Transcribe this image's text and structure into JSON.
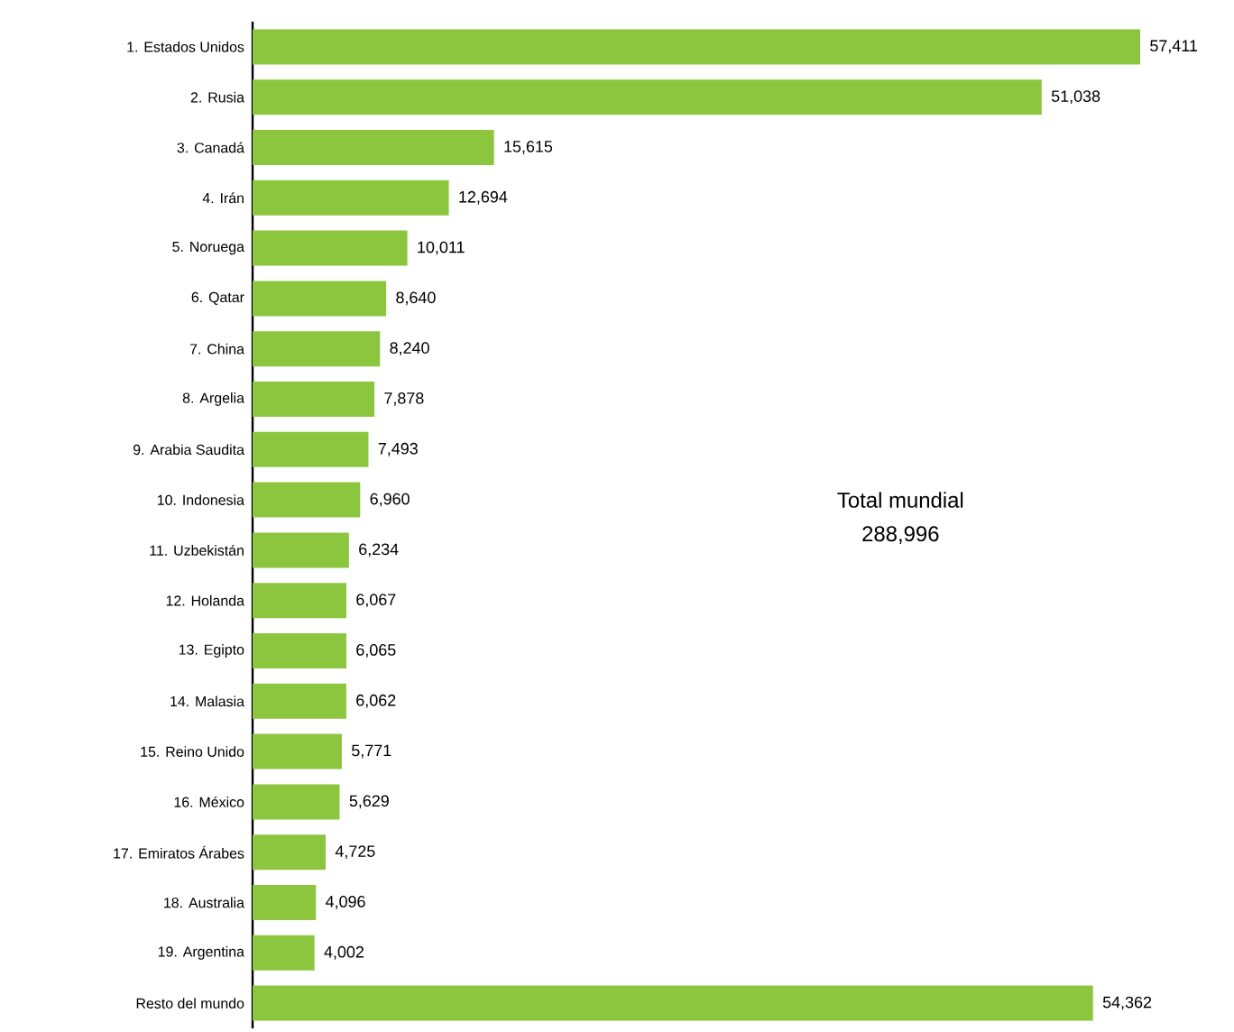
{
  "chart_data": {
    "type": "bar",
    "orientation": "horizontal",
    "categories": [
      "1. Estados Unidos",
      "2. Rusia",
      "3. Canadá",
      "4. Irán",
      "5. Noruega",
      "6. Qatar",
      "7. China",
      "8. Argelia",
      "9. Arabia Saudita",
      "10. Indonesia",
      "11. Uzbekistán",
      "12. Holanda",
      "13. Egipto",
      "14. Malasia",
      "15. Reino Unido",
      "16. México",
      "17. Emiratos Árabes",
      "18. Australia",
      "19. Argentina",
      "Resto del mundo"
    ],
    "values": [
      57411,
      51038,
      15615,
      12694,
      10011,
      8640,
      8240,
      7878,
      7493,
      6960,
      6234,
      6067,
      6065,
      6062,
      5771,
      5629,
      4725,
      4096,
      4002,
      54362
    ],
    "value_labels": [
      "57,411",
      "51,038",
      "15,615",
      "12,694",
      "10,011",
      "8,640",
      "8,240",
      "7,878",
      "7,493",
      "6,960",
      "6,234",
      "6,067",
      "6,065",
      "6,062",
      "5,771",
      "5,629",
      "4,725",
      "4,096",
      "4,002",
      "54,362"
    ],
    "color": "#8cc63f",
    "annotations": [
      "Total mundial",
      "288,996"
    ]
  }
}
